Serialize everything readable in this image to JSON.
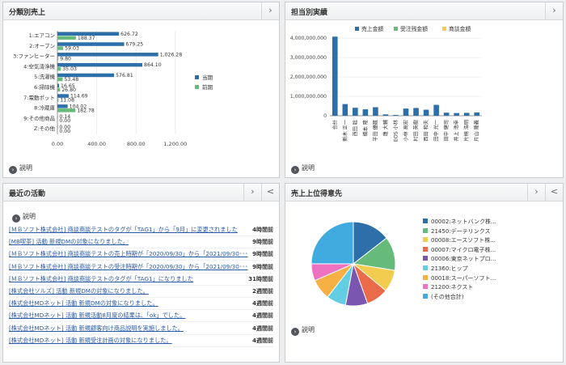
{
  "panels": {
    "sales_by_category": {
      "title": "分類別売上"
    },
    "staff_results": {
      "title": "担当別実績"
    },
    "recent_activity": {
      "title": "最近の活動"
    },
    "top_customers": {
      "title": "売上上位得意先"
    }
  },
  "ui": {
    "desc_label": "説明",
    "next_icon": "›",
    "prev_icon": "<",
    "info_icon": "›"
  },
  "chart_data": [
    {
      "type": "bar",
      "orientation": "horizontal",
      "categories": [
        "1:エアコン",
        "2:オーブン",
        "3:ファンヒーター",
        "4:空気清浄機",
        "5:洗濯機",
        "6:掃除機",
        "7:電動ポット",
        "8:冷蔵庫",
        "9:その他商品",
        "Z:その他"
      ],
      "series": [
        {
          "name": "当期",
          "color": "#2d6fa8",
          "values": [
            626.72,
            679.25,
            1026.28,
            864.1,
            576.81,
            16.65,
            114.69,
            104.02,
            0.14,
            0.0
          ]
        },
        {
          "name": "前期",
          "color": "#66bb7a",
          "values": [
            188.37,
            59.03,
            9.8,
            35.03,
            53.48,
            26.8,
            11.08,
            182.78,
            0.0,
            0.0
          ]
        }
      ],
      "value_labels": [
        [
          "626.72",
          "679.25",
          "1,026.28",
          "864.10",
          "576.81",
          "16.65",
          "114.69",
          "104.02",
          "0.14",
          "0.00"
        ],
        [
          "188.37",
          "59.03",
          "9.80",
          "35.03",
          "53.48",
          "26.80",
          "11.08",
          "182.78",
          "0.00",
          "0.00"
        ]
      ],
      "x_ticks": [
        "0.00",
        "400.00",
        "800.00",
        "1,200.00"
      ],
      "xlim": [
        0,
        1300
      ],
      "legend_position": "right"
    },
    {
      "type": "bar",
      "categories": [
        "合計",
        "新木 正一",
        "西田 聡",
        "橋本 隆",
        "平田 優蔵",
        "蓮 大輔",
        "EOS 小林",
        "小林 高宏",
        "村田 英樹",
        "西田 和夫",
        "田中 光一",
        "田中 健司",
        "井上 浩幸",
        "片桐 浩明",
        "片山 隆義"
      ],
      "series": [
        {
          "name": "売上金額",
          "color": "#2d6fa8",
          "values": [
            4080000000,
            600000000,
            410000000,
            330000000,
            440000000,
            70000000,
            40000000,
            370000000,
            400000000,
            310000000,
            560000000,
            160000000,
            140000000,
            150000000,
            170000000
          ]
        },
        {
          "name": "受注残金額",
          "color": "#66bb7a",
          "values": [
            0,
            0,
            0,
            0,
            0,
            0,
            0,
            0,
            0,
            0,
            0,
            0,
            0,
            0,
            0
          ]
        },
        {
          "name": "商談金額",
          "color": "#f2cc4e",
          "values": [
            0,
            0,
            0,
            0,
            0,
            0,
            0,
            0,
            0,
            0,
            0,
            0,
            0,
            0,
            0
          ]
        }
      ],
      "y_ticks": [
        "0",
        "1,000,000,000",
        "2,000,000,000",
        "3,000,000,000",
        "4,000,000,000"
      ],
      "ylim": [
        0,
        4300000000
      ],
      "legend_position": "top"
    },
    {
      "type": "pie",
      "labels": [
        "00002:ネットバンク株...",
        "21450:デーテリンクス",
        "00008:エースソフト株...",
        "00007:マイクロ電子株...",
        "00006:東京ネットプロ...",
        "21360:ヒップ",
        "00018:スーパーソフト...",
        "21200:ネクスト",
        "(その他合計)"
      ],
      "values": [
        14.5,
        13.0,
        8.5,
        8.5,
        8.5,
        7.5,
        8.0,
        6.5,
        25.0
      ],
      "colors": [
        "#2d6fa8",
        "#66bb7a",
        "#f2cc4e",
        "#ea6a4a",
        "#7b56b0",
        "#63cde4",
        "#f6b044",
        "#ef72c0",
        "#40abdf"
      ],
      "legend_position": "right"
    }
  ],
  "activities": [
    {
      "text": "[ＭＢソフト株式会社] 商談商談テストのタグが「TAG1」から「9月」に変更されました",
      "time": "4時間前"
    },
    {
      "text": "[MB喫茶] 活動 新規DMの対象になりました。",
      "time": "9時間前"
    },
    {
      "text": "[ＭＢソフト株式会社] 商談商談テストの売上時期が「2020/09/30」から「2021/09/30･･･",
      "time": "9時間前"
    },
    {
      "text": "[ＭＢソフト株式会社] 商談商談テストの受注時期が「2020/09/30」から「2021/09/30･･･",
      "time": "9時間前"
    },
    {
      "text": "[ＭＢソフト株式会社] 商談商談テストのタグが「TAG1」になりました",
      "time": "31時間前"
    },
    {
      "text": "[株式会社ソルズ] 活動 新規DMの対象になりました。",
      "time": "2週間前"
    },
    {
      "text": "[株式会社MDネット] 活動 新規DMの対象になりました。",
      "time": "4週間前"
    },
    {
      "text": "[株式会社MDネット] 活動 新規活動8月度の結果は、「ok」でした。",
      "time": "4週間前"
    },
    {
      "text": "[株式会社MDネット] 活動 新規顧客向け商品説明を実施しました。",
      "time": "4週間前"
    },
    {
      "text": "[株式会社MDネット] 活動 新規受注計画の対象になりました。",
      "time": "4週間前"
    }
  ]
}
